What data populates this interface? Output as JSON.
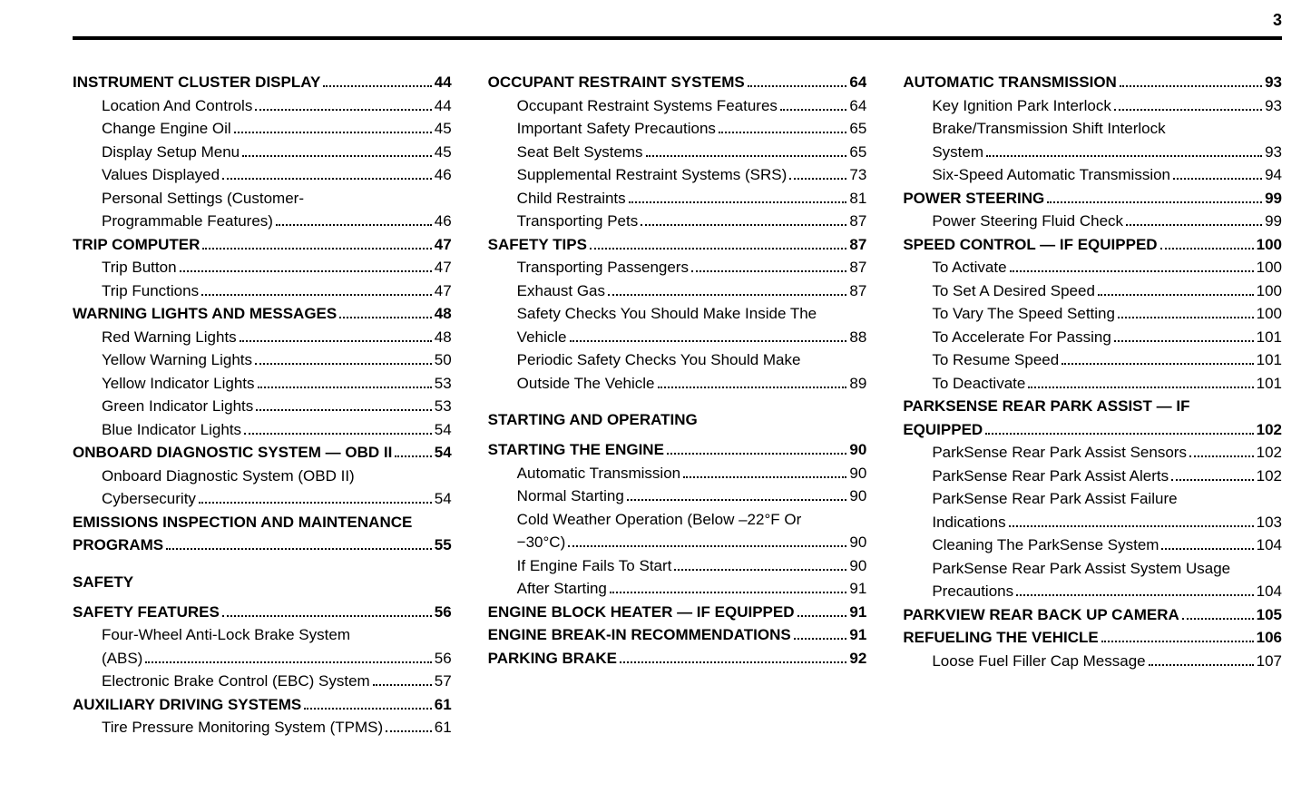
{
  "page_number": "3",
  "columns": [
    [
      {
        "type": "entry",
        "level": 0,
        "label": "INSTRUMENT CLUSTER DISPLAY",
        "page": "44"
      },
      {
        "type": "entry",
        "level": 1,
        "label": "Location And Controls",
        "page": "44"
      },
      {
        "type": "entry",
        "level": 1,
        "label": "Change Engine Oil",
        "page": "45"
      },
      {
        "type": "entry",
        "level": 1,
        "label": "Display Setup Menu",
        "page": "45"
      },
      {
        "type": "entry",
        "level": 1,
        "label": "Values Displayed",
        "page": "46"
      },
      {
        "type": "wrap",
        "level": 1,
        "lines": [
          "Personal Settings (Customer-",
          "Programmable Features)"
        ],
        "page": "46"
      },
      {
        "type": "entry",
        "level": 0,
        "label": "TRIP COMPUTER",
        "page": "47"
      },
      {
        "type": "entry",
        "level": 1,
        "label": "Trip Button",
        "page": "47"
      },
      {
        "type": "entry",
        "level": 1,
        "label": "Trip Functions",
        "page": "47"
      },
      {
        "type": "entry",
        "level": 0,
        "label": "WARNING LIGHTS AND MESSAGES",
        "page": "48"
      },
      {
        "type": "entry",
        "level": 1,
        "label": "Red Warning Lights",
        "page": "48"
      },
      {
        "type": "entry",
        "level": 1,
        "label": "Yellow Warning Lights",
        "page": "50"
      },
      {
        "type": "entry",
        "level": 1,
        "label": "Yellow Indicator Lights",
        "page": "53"
      },
      {
        "type": "entry",
        "level": 1,
        "label": "Green Indicator Lights",
        "page": "53"
      },
      {
        "type": "entry",
        "level": 1,
        "label": "Blue Indicator Lights",
        "page": "54"
      },
      {
        "type": "entry",
        "level": 0,
        "label": "ONBOARD DIAGNOSTIC SYSTEM — OBD II",
        "page": "54"
      },
      {
        "type": "wrap",
        "level": 1,
        "lines": [
          "Onboard Diagnostic System (OBD II)",
          "Cybersecurity"
        ],
        "page": "54"
      },
      {
        "type": "wrap",
        "level": 0,
        "lines": [
          "EMISSIONS INSPECTION AND MAINTENANCE",
          "PROGRAMS"
        ],
        "page": "55"
      },
      {
        "type": "heading",
        "label": "SAFETY"
      },
      {
        "type": "entry",
        "level": 0,
        "label": "SAFETY FEATURES",
        "page": "56"
      },
      {
        "type": "wrap",
        "level": 1,
        "lines": [
          "Four-Wheel Anti-Lock Brake System",
          "(ABS)"
        ],
        "page": "56"
      },
      {
        "type": "entry",
        "level": 1,
        "label": "Electronic Brake Control (EBC) System",
        "page": "57"
      },
      {
        "type": "entry",
        "level": 0,
        "label": "AUXILIARY DRIVING SYSTEMS",
        "page": "61"
      },
      {
        "type": "entry",
        "level": 1,
        "label": "Tire Pressure Monitoring System (TPMS)",
        "page": "61"
      }
    ],
    [
      {
        "type": "entry",
        "level": 0,
        "label": "OCCUPANT RESTRAINT SYSTEMS",
        "page": "64"
      },
      {
        "type": "entry",
        "level": 1,
        "label": "Occupant Restraint Systems Features",
        "page": "64"
      },
      {
        "type": "entry",
        "level": 1,
        "label": "Important Safety Precautions",
        "page": "65"
      },
      {
        "type": "entry",
        "level": 1,
        "label": "Seat Belt Systems",
        "page": "65"
      },
      {
        "type": "entry",
        "level": 1,
        "label": "Supplemental Restraint Systems (SRS)",
        "page": "73"
      },
      {
        "type": "entry",
        "level": 1,
        "label": "Child Restraints",
        "page": "81"
      },
      {
        "type": "entry",
        "level": 1,
        "label": "Transporting Pets",
        "page": "87"
      },
      {
        "type": "entry",
        "level": 0,
        "label": "SAFETY TIPS",
        "page": "87"
      },
      {
        "type": "entry",
        "level": 1,
        "label": "Transporting Passengers",
        "page": "87"
      },
      {
        "type": "entry",
        "level": 1,
        "label": "Exhaust Gas",
        "page": "87"
      },
      {
        "type": "wrap",
        "level": 1,
        "lines": [
          "Safety Checks You Should Make Inside The",
          "Vehicle"
        ],
        "page": "88"
      },
      {
        "type": "wrap",
        "level": 1,
        "lines": [
          "Periodic Safety Checks You Should Make",
          "Outside The Vehicle"
        ],
        "page": "89"
      },
      {
        "type": "heading",
        "label": "STARTING AND OPERATING"
      },
      {
        "type": "entry",
        "level": 0,
        "label": "STARTING THE ENGINE",
        "page": "90"
      },
      {
        "type": "entry",
        "level": 1,
        "label": "Automatic Transmission",
        "page": "90"
      },
      {
        "type": "entry",
        "level": 1,
        "label": "Normal Starting",
        "page": "90"
      },
      {
        "type": "wrap",
        "level": 1,
        "lines": [
          "Cold Weather Operation (Below –22°F Or",
          "−30°C)"
        ],
        "page": "90"
      },
      {
        "type": "entry",
        "level": 1,
        "label": "If Engine Fails To Start",
        "page": "90"
      },
      {
        "type": "entry",
        "level": 1,
        "label": "After Starting",
        "page": "91"
      },
      {
        "type": "entry",
        "level": 0,
        "label": "ENGINE BLOCK HEATER — IF EQUIPPED",
        "page": "91"
      },
      {
        "type": "entry",
        "level": 0,
        "label": "ENGINE BREAK-IN RECOMMENDATIONS",
        "page": "91"
      },
      {
        "type": "entry",
        "level": 0,
        "label": "PARKING BRAKE",
        "page": "92"
      }
    ],
    [
      {
        "type": "entry",
        "level": 0,
        "label": "AUTOMATIC TRANSMISSION",
        "page": "93"
      },
      {
        "type": "entry",
        "level": 1,
        "label": "Key Ignition Park Interlock",
        "page": "93"
      },
      {
        "type": "wrap",
        "level": 1,
        "lines": [
          "Brake/Transmission Shift Interlock",
          "System"
        ],
        "page": "93"
      },
      {
        "type": "entry",
        "level": 1,
        "label": "Six-Speed Automatic Transmission",
        "page": "94"
      },
      {
        "type": "entry",
        "level": 0,
        "label": "POWER STEERING",
        "page": "99"
      },
      {
        "type": "entry",
        "level": 1,
        "label": "Power Steering Fluid Check",
        "page": "99"
      },
      {
        "type": "entry",
        "level": 0,
        "label": "SPEED CONTROL — IF EQUIPPED",
        "page": "100"
      },
      {
        "type": "entry",
        "level": 1,
        "label": "To Activate",
        "page": "100"
      },
      {
        "type": "entry",
        "level": 1,
        "label": "To Set A Desired Speed",
        "page": "100"
      },
      {
        "type": "entry",
        "level": 1,
        "label": "To Vary The Speed Setting",
        "page": "100"
      },
      {
        "type": "entry",
        "level": 1,
        "label": "To Accelerate For Passing",
        "page": "101"
      },
      {
        "type": "entry",
        "level": 1,
        "label": "To Resume Speed",
        "page": "101"
      },
      {
        "type": "entry",
        "level": 1,
        "label": "To Deactivate",
        "page": "101"
      },
      {
        "type": "wrap",
        "level": 0,
        "lines": [
          "PARKSENSE REAR PARK ASSIST — IF",
          "EQUIPPED"
        ],
        "page": "102"
      },
      {
        "type": "entry",
        "level": 1,
        "label": "ParkSense Rear Park Assist Sensors",
        "page": "102"
      },
      {
        "type": "entry",
        "level": 1,
        "label": "ParkSense Rear Park Assist Alerts",
        "page": "102"
      },
      {
        "type": "wrap",
        "level": 1,
        "lines": [
          "ParkSense Rear Park Assist Failure",
          "Indications"
        ],
        "page": "103"
      },
      {
        "type": "entry",
        "level": 1,
        "label": "Cleaning The ParkSense System",
        "page": "104"
      },
      {
        "type": "wrap",
        "level": 1,
        "lines": [
          "ParkSense Rear Park Assist System Usage",
          "Precautions"
        ],
        "page": "104"
      },
      {
        "type": "entry",
        "level": 0,
        "label": "PARKVIEW REAR BACK UP CAMERA",
        "page": "105"
      },
      {
        "type": "entry",
        "level": 0,
        "label": "REFUELING THE VEHICLE",
        "page": "106"
      },
      {
        "type": "entry",
        "level": 1,
        "label": "Loose Fuel Filler Cap Message",
        "page": "107"
      }
    ]
  ]
}
